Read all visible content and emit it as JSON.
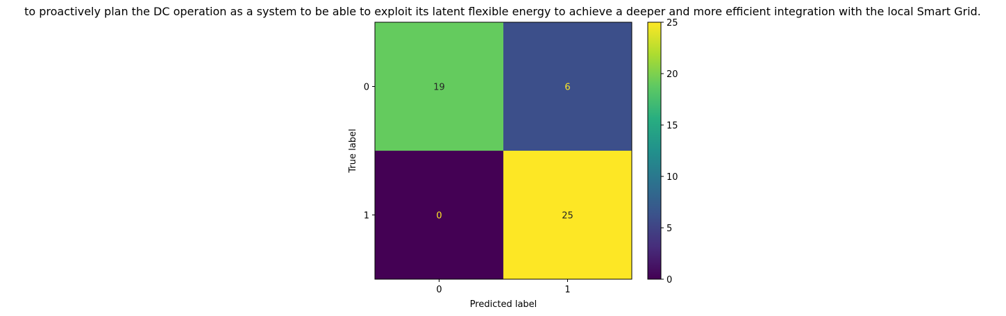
{
  "chart_data": {
    "type": "heatmap",
    "title": "to proactively plan the DC operation as a system to be able to exploit its latent flexible energy to achieve a deeper and more efficient integration with the local Smart Grid.",
    "xlabel": "Predicted label",
    "ylabel": "True label",
    "x_categories": [
      "0",
      "1"
    ],
    "y_categories": [
      "0",
      "1"
    ],
    "values": [
      [
        19,
        6
      ],
      [
        0,
        25
      ]
    ],
    "colormap": "viridis",
    "color_range": [
      0,
      25
    ],
    "colorbar_ticks": [
      0,
      5,
      10,
      15,
      20,
      25
    ],
    "grid": false
  }
}
